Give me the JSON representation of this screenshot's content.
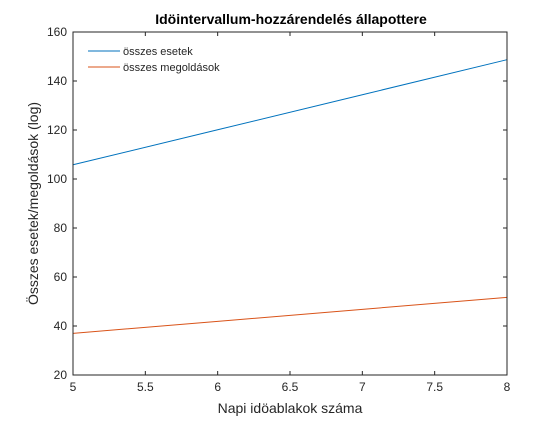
{
  "chart_data": {
    "type": "line",
    "title": "Idöintervallum-hozzárendelés állapottere",
    "xlabel": "Napi idöablakok száma",
    "ylabel": "Összes esetek/megoldások (log)",
    "xlim": [
      5,
      8
    ],
    "ylim": [
      20,
      160
    ],
    "xticks": [
      5,
      5.5,
      6,
      6.5,
      7,
      7.5,
      8
    ],
    "xtick_labels": [
      "5",
      "5.5",
      "6",
      "6.5",
      "7",
      "7.5",
      "8"
    ],
    "yticks": [
      20,
      40,
      60,
      80,
      100,
      120,
      140,
      160
    ],
    "ytick_labels": [
      "20",
      "40",
      "60",
      "80",
      "100",
      "120",
      "140",
      "160"
    ],
    "grid": false,
    "legend_position": "top-left",
    "x": [
      5,
      6,
      7,
      8
    ],
    "series": [
      {
        "name": "összes esetek",
        "color": "#0072BD",
        "values": [
          105.8,
          120.1,
          134.4,
          148.7
        ]
      },
      {
        "name": "összes megoldások",
        "color": "#D95319",
        "values": [
          37.0,
          41.9,
          46.8,
          51.7
        ]
      }
    ]
  }
}
